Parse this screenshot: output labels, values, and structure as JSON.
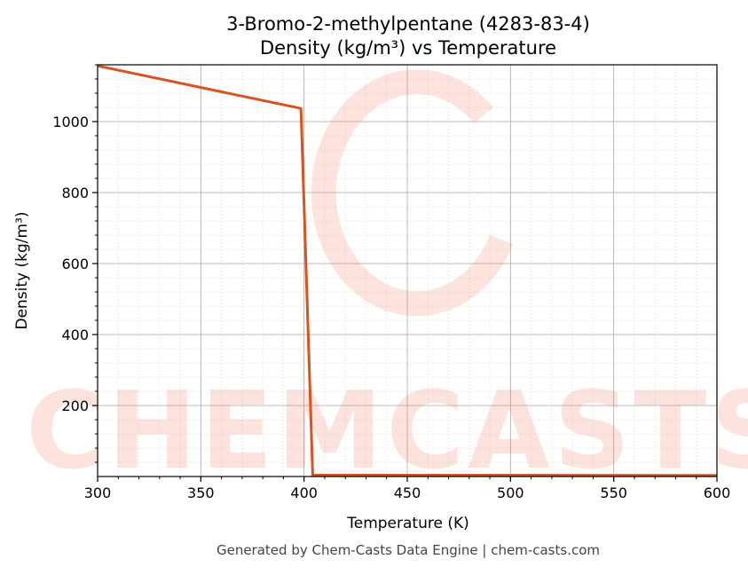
{
  "chart_data": {
    "type": "line",
    "title": "3-Bromo-2-methylpentane (4283-83-4)",
    "subtitle": "Density (kg/m³) vs Temperature",
    "xlabel": "Temperature (K)",
    "ylabel": "Density (kg/m³)",
    "xlim": [
      300,
      600
    ],
    "ylim": [
      0,
      1160
    ],
    "xticks": [
      300,
      350,
      400,
      450,
      500,
      550,
      600
    ],
    "yticks": [
      200,
      400,
      600,
      800,
      1000
    ],
    "grid": true,
    "series": [
      {
        "color": "#d9531e",
        "x": [
          300,
          398.5,
          404.2,
          600
        ],
        "y": [
          1157,
          1037,
          4,
          3
        ]
      }
    ],
    "watermark": "CHEMCASTS",
    "footer": "Generated by Chem-Casts Data Engine | chem-casts.com"
  }
}
